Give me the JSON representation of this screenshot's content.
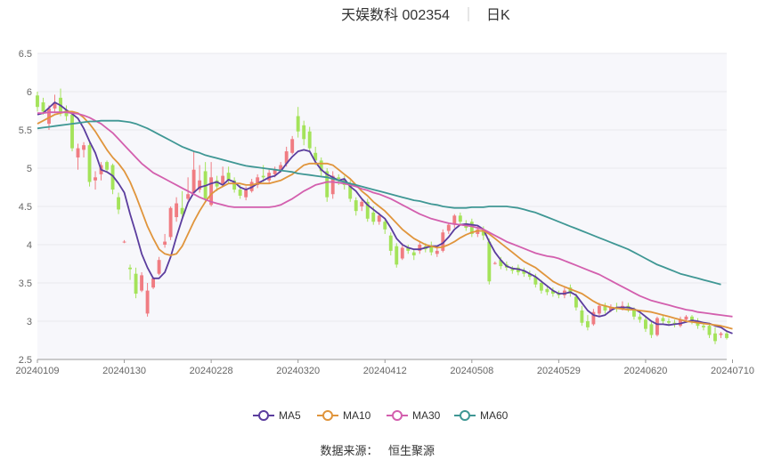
{
  "header": {
    "title": "天娱数科 002354",
    "period": "日K"
  },
  "footer": {
    "source_label": "数据来源：",
    "source_value": "恒生聚源"
  },
  "colors": {
    "up": "#f07c82",
    "down": "#a4e35a",
    "ma5": "#5b3d9e",
    "ma10": "#e0953c",
    "ma30": "#d35fae",
    "ma60": "#3f9794",
    "grid": "#e8e8ee",
    "plot_bg": "#f7f7fb"
  },
  "chart_data": {
    "type": "candlestick",
    "ylim": [
      2.5,
      6.5
    ],
    "y_ticks": [
      "6.5",
      "6",
      "5.5",
      "5",
      "4.5",
      "4",
      "3.5",
      "3",
      "2.5"
    ],
    "x_tick_labels": [
      "20240109",
      "20240130",
      "20240228",
      "20240320",
      "20240412",
      "20240508",
      "20240529",
      "20240620",
      "20240710"
    ],
    "x_tick_index": [
      0,
      15,
      30,
      45,
      60,
      75,
      90,
      105,
      120
    ],
    "candles": [
      [
        5.95,
        5.8,
        6.0,
        5.74
      ],
      [
        5.86,
        5.74,
        5.92,
        5.7
      ],
      [
        5.58,
        5.78,
        5.82,
        5.5
      ],
      [
        5.78,
        5.86,
        5.96,
        5.72
      ],
      [
        5.92,
        5.72,
        6.04,
        5.68
      ],
      [
        5.76,
        5.68,
        5.82,
        5.62
      ],
      [
        5.7,
        5.26,
        5.74,
        5.22
      ],
      [
        5.14,
        5.26,
        5.32,
        4.98
      ],
      [
        5.24,
        5.3,
        5.34,
        5.14
      ],
      [
        5.3,
        4.82,
        5.34,
        4.76
      ],
      [
        4.84,
        4.88,
        4.96,
        4.72
      ],
      [
        4.92,
        5.04,
        5.08,
        4.84
      ],
      [
        5.08,
        4.98,
        5.1,
        4.94
      ],
      [
        5.04,
        4.72,
        5.06,
        4.66
      ],
      [
        4.62,
        4.46,
        4.68,
        4.4
      ],
      [
        4.04,
        4.04,
        4.06,
        4.02
      ],
      [
        3.7,
        3.68,
        3.74,
        3.54
      ],
      [
        3.62,
        3.36,
        3.7,
        3.3
      ],
      [
        3.4,
        3.6,
        3.64,
        3.38
      ],
      [
        3.1,
        3.4,
        3.5,
        3.06
      ],
      [
        3.44,
        3.56,
        3.58,
        3.42
      ],
      [
        3.62,
        3.8,
        3.84,
        3.6
      ],
      [
        4.0,
        4.04,
        4.14,
        3.96
      ],
      [
        4.1,
        4.48,
        4.5,
        4.06
      ],
      [
        4.36,
        4.54,
        4.62,
        4.3
      ],
      [
        4.48,
        4.4,
        4.7,
        4.36
      ],
      [
        4.6,
        4.66,
        4.88,
        4.58
      ],
      [
        4.68,
        4.98,
        5.22,
        4.66
      ],
      [
        4.72,
        4.84,
        5.04,
        4.68
      ],
      [
        4.96,
        4.6,
        5.08,
        4.56
      ],
      [
        4.52,
        4.88,
        5.08,
        4.5
      ],
      [
        4.84,
        4.76,
        4.9,
        4.7
      ],
      [
        4.8,
        4.9,
        5.02,
        4.78
      ],
      [
        4.94,
        4.84,
        5.02,
        4.8
      ],
      [
        4.84,
        4.72,
        4.88,
        4.68
      ],
      [
        4.72,
        4.64,
        4.78,
        4.6
      ],
      [
        4.62,
        4.72,
        4.76,
        4.58
      ],
      [
        4.7,
        4.82,
        4.86,
        4.68
      ],
      [
        4.78,
        4.88,
        4.92,
        4.74
      ],
      [
        4.9,
        4.88,
        5.04,
        4.82
      ],
      [
        4.84,
        4.94,
        4.98,
        4.8
      ],
      [
        4.92,
        4.98,
        5.02,
        4.88
      ],
      [
        4.98,
        5.04,
        5.08,
        4.94
      ],
      [
        5.06,
        5.22,
        5.28,
        5.02
      ],
      [
        5.2,
        5.38,
        5.42,
        5.18
      ],
      [
        5.68,
        5.48,
        5.8,
        5.4
      ],
      [
        5.56,
        5.38,
        5.62,
        5.3
      ],
      [
        5.48,
        5.26,
        5.54,
        5.2
      ],
      [
        5.2,
        5.1,
        5.28,
        5.04
      ],
      [
        5.1,
        4.96,
        5.14,
        4.9
      ],
      [
        4.96,
        4.62,
        5.0,
        4.56
      ],
      [
        4.66,
        4.9,
        4.96,
        4.6
      ],
      [
        4.88,
        4.86,
        4.92,
        4.78
      ],
      [
        4.84,
        4.78,
        4.9,
        4.72
      ],
      [
        4.8,
        4.6,
        4.84,
        4.56
      ],
      [
        4.58,
        4.44,
        4.62,
        4.38
      ],
      [
        4.5,
        4.56,
        4.6,
        4.44
      ],
      [
        4.56,
        4.34,
        4.6,
        4.3
      ],
      [
        4.42,
        4.3,
        4.5,
        4.26
      ],
      [
        4.3,
        4.38,
        4.42,
        4.26
      ],
      [
        4.3,
        4.2,
        4.34,
        4.14
      ],
      [
        4.12,
        3.92,
        4.16,
        3.86
      ],
      [
        3.98,
        3.74,
        4.02,
        3.7
      ],
      [
        3.82,
        3.96,
        4.02,
        3.8
      ],
      [
        3.96,
        3.92,
        4.0,
        3.88
      ],
      [
        3.9,
        3.86,
        3.94,
        3.8
      ],
      [
        3.92,
        4.0,
        4.04,
        3.88
      ],
      [
        3.98,
        3.94,
        4.02,
        3.9
      ],
      [
        3.98,
        3.9,
        4.04,
        3.86
      ],
      [
        3.88,
        3.92,
        3.96,
        3.84
      ],
      [
        3.92,
        4.16,
        4.2,
        3.9
      ],
      [
        4.18,
        4.26,
        4.28,
        4.14
      ],
      [
        4.26,
        4.38,
        4.4,
        4.22
      ],
      [
        4.38,
        4.3,
        4.42,
        4.26
      ],
      [
        4.28,
        4.22,
        4.32,
        4.18
      ],
      [
        4.3,
        4.14,
        4.34,
        4.1
      ],
      [
        4.14,
        4.2,
        4.24,
        4.1
      ],
      [
        4.2,
        4.12,
        4.24,
        4.06
      ],
      [
        4.04,
        3.52,
        4.08,
        3.48
      ],
      [
        3.76,
        3.76,
        3.78,
        3.74
      ],
      [
        3.8,
        3.72,
        3.84,
        3.68
      ],
      [
        3.74,
        3.7,
        3.78,
        3.66
      ],
      [
        3.68,
        3.66,
        3.72,
        3.62
      ],
      [
        3.7,
        3.64,
        3.74,
        3.6
      ],
      [
        3.66,
        3.62,
        3.7,
        3.58
      ],
      [
        3.62,
        3.58,
        3.66,
        3.54
      ],
      [
        3.58,
        3.48,
        3.62,
        3.44
      ],
      [
        3.5,
        3.4,
        3.54,
        3.36
      ],
      [
        3.42,
        3.38,
        3.46,
        3.34
      ],
      [
        3.4,
        3.36,
        3.44,
        3.32
      ],
      [
        3.36,
        3.34,
        3.4,
        3.3
      ],
      [
        3.34,
        3.4,
        3.44,
        3.3
      ],
      [
        3.44,
        3.36,
        3.48,
        3.32
      ],
      [
        3.32,
        3.18,
        3.36,
        3.14
      ],
      [
        3.14,
        2.98,
        3.2,
        2.94
      ],
      [
        3.0,
        2.92,
        3.08,
        2.88
      ],
      [
        2.96,
        3.12,
        3.16,
        2.94
      ],
      [
        3.1,
        3.2,
        3.24,
        3.06
      ],
      [
        3.2,
        3.14,
        3.24,
        3.1
      ],
      [
        3.14,
        3.18,
        3.22,
        3.12
      ],
      [
        3.18,
        3.16,
        3.24,
        3.12
      ],
      [
        3.16,
        3.2,
        3.26,
        3.14
      ],
      [
        3.2,
        3.16,
        3.24,
        3.12
      ],
      [
        3.14,
        3.06,
        3.18,
        3.02
      ],
      [
        3.06,
        3.02,
        3.1,
        2.98
      ],
      [
        3.02,
        2.9,
        3.06,
        2.86
      ],
      [
        2.96,
        2.82,
        3.0,
        2.78
      ],
      [
        2.82,
        3.04,
        3.06,
        2.8
      ],
      [
        3.04,
        3.0,
        3.08,
        2.96
      ],
      [
        3.0,
        2.98,
        3.04,
        2.94
      ],
      [
        2.98,
        2.96,
        3.02,
        2.92
      ],
      [
        2.94,
        3.02,
        3.06,
        2.92
      ],
      [
        3.02,
        3.06,
        3.08,
        2.98
      ],
      [
        3.06,
        3.0,
        3.08,
        2.96
      ],
      [
        3.0,
        2.94,
        3.04,
        2.9
      ],
      [
        2.94,
        2.92,
        2.98,
        2.88
      ],
      [
        2.94,
        2.82,
        2.98,
        2.78
      ],
      [
        2.84,
        2.74,
        2.92,
        2.7
      ],
      [
        2.82,
        2.84,
        2.86,
        2.78
      ],
      [
        2.84,
        2.78,
        2.88,
        2.76
      ]
    ],
    "series": [
      {
        "name": "MA5",
        "color": "#5b3d9e",
        "values": [
          5.7,
          5.72,
          5.79,
          5.86,
          5.82,
          5.76,
          5.71,
          5.65,
          5.52,
          5.35,
          5.2,
          4.98,
          4.95,
          4.9,
          4.8,
          4.68,
          4.4,
          4.15,
          3.88,
          3.7,
          3.56,
          3.56,
          3.64,
          3.84,
          4.1,
          4.34,
          4.55,
          4.68,
          4.75,
          4.77,
          4.8,
          4.82,
          4.78,
          4.85,
          4.82,
          4.75,
          4.72,
          4.75,
          4.8,
          4.84,
          4.88,
          4.9,
          4.96,
          5.06,
          5.15,
          5.22,
          5.24,
          5.22,
          5.08,
          4.98,
          4.92,
          4.88,
          4.84,
          4.86,
          4.76,
          4.7,
          4.6,
          4.52,
          4.46,
          4.4,
          4.34,
          4.22,
          4.08,
          4.0,
          3.96,
          3.94,
          3.94,
          3.96,
          3.98,
          3.98,
          4.02,
          4.1,
          4.2,
          4.26,
          4.27,
          4.26,
          4.25,
          4.2,
          4.04,
          3.9,
          3.8,
          3.72,
          3.69,
          3.68,
          3.66,
          3.62,
          3.58,
          3.52,
          3.46,
          3.4,
          3.36,
          3.36,
          3.38,
          3.34,
          3.24,
          3.14,
          3.08,
          3.06,
          3.08,
          3.14,
          3.18,
          3.18,
          3.18,
          3.16,
          3.12,
          3.06,
          3.0,
          2.96,
          2.96,
          2.95,
          2.96,
          2.97,
          2.99,
          3.01,
          3.0,
          2.98,
          2.97,
          2.94,
          2.92,
          2.87,
          2.84
        ]
      },
      {
        "name": "MA10",
        "color": "#e0953c",
        "values": [
          5.58,
          5.62,
          5.66,
          5.7,
          5.72,
          5.74,
          5.74,
          5.72,
          5.66,
          5.58,
          5.48,
          5.36,
          5.24,
          5.14,
          5.06,
          4.96,
          4.82,
          4.64,
          4.44,
          4.24,
          4.08,
          3.94,
          3.88,
          3.86,
          3.88,
          3.98,
          4.14,
          4.3,
          4.44,
          4.56,
          4.66,
          4.72,
          4.76,
          4.8,
          4.8,
          4.8,
          4.78,
          4.78,
          4.8,
          4.8,
          4.8,
          4.82,
          4.84,
          4.88,
          4.92,
          4.98,
          5.04,
          5.06,
          5.06,
          5.06,
          5.06,
          5.04,
          4.98,
          4.92,
          4.86,
          4.78,
          4.7,
          4.64,
          4.56,
          4.5,
          4.44,
          4.36,
          4.28,
          4.2,
          4.14,
          4.08,
          4.04,
          4.0,
          3.98,
          3.96,
          3.97,
          4.0,
          4.04,
          4.09,
          4.13,
          4.16,
          4.18,
          4.18,
          4.14,
          4.08,
          4.02,
          3.96,
          3.9,
          3.84,
          3.78,
          3.74,
          3.7,
          3.64,
          3.58,
          3.52,
          3.48,
          3.45,
          3.42,
          3.39,
          3.36,
          3.31,
          3.26,
          3.22,
          3.2,
          3.18,
          3.17,
          3.16,
          3.15,
          3.15,
          3.14,
          3.13,
          3.12,
          3.1,
          3.08,
          3.06,
          3.04,
          3.02,
          3.0,
          2.99,
          2.98,
          2.97,
          2.96,
          2.95,
          2.94,
          2.92,
          2.9
        ]
      },
      {
        "name": "MA30",
        "color": "#d35fae",
        "values": [
          5.72,
          5.72,
          5.73,
          5.73,
          5.73,
          5.73,
          5.72,
          5.71,
          5.69,
          5.66,
          5.62,
          5.58,
          5.52,
          5.46,
          5.38,
          5.3,
          5.22,
          5.14,
          5.06,
          5.0,
          4.94,
          4.9,
          4.86,
          4.82,
          4.78,
          4.74,
          4.7,
          4.66,
          4.62,
          4.59,
          4.56,
          4.54,
          4.52,
          4.5,
          4.49,
          4.49,
          4.49,
          4.49,
          4.49,
          4.49,
          4.49,
          4.5,
          4.52,
          4.56,
          4.6,
          4.65,
          4.7,
          4.74,
          4.78,
          4.8,
          4.82,
          4.82,
          4.81,
          4.8,
          4.78,
          4.76,
          4.73,
          4.71,
          4.68,
          4.66,
          4.63,
          4.6,
          4.56,
          4.52,
          4.48,
          4.44,
          4.4,
          4.37,
          4.34,
          4.32,
          4.3,
          4.28,
          4.27,
          4.26,
          4.25,
          4.24,
          4.22,
          4.2,
          4.16,
          4.12,
          4.08,
          4.04,
          4.01,
          3.98,
          3.95,
          3.92,
          3.89,
          3.87,
          3.85,
          3.84,
          3.82,
          3.79,
          3.76,
          3.73,
          3.7,
          3.67,
          3.64,
          3.61,
          3.57,
          3.53,
          3.49,
          3.45,
          3.41,
          3.37,
          3.33,
          3.3,
          3.27,
          3.25,
          3.23,
          3.21,
          3.19,
          3.17,
          3.15,
          3.14,
          3.12,
          3.11,
          3.1,
          3.09,
          3.08,
          3.07,
          3.06
        ]
      },
      {
        "name": "MA60",
        "color": "#3f9794",
        "values": [
          5.52,
          5.53,
          5.54,
          5.55,
          5.56,
          5.57,
          5.58,
          5.59,
          5.6,
          5.61,
          5.61,
          5.62,
          5.62,
          5.62,
          5.62,
          5.61,
          5.6,
          5.58,
          5.55,
          5.52,
          5.48,
          5.44,
          5.4,
          5.36,
          5.32,
          5.28,
          5.25,
          5.22,
          5.2,
          5.17,
          5.15,
          5.13,
          5.11,
          5.09,
          5.07,
          5.05,
          5.03,
          5.02,
          5.01,
          5.0,
          4.99,
          4.98,
          4.97,
          4.96,
          4.95,
          4.93,
          4.92,
          4.91,
          4.9,
          4.89,
          4.88,
          4.86,
          4.84,
          4.82,
          4.8,
          4.78,
          4.76,
          4.74,
          4.72,
          4.7,
          4.68,
          4.66,
          4.64,
          4.62,
          4.6,
          4.58,
          4.57,
          4.55,
          4.53,
          4.52,
          4.5,
          4.49,
          4.48,
          4.48,
          4.48,
          4.49,
          4.49,
          4.49,
          4.5,
          4.5,
          4.5,
          4.5,
          4.49,
          4.48,
          4.46,
          4.44,
          4.42,
          4.39,
          4.36,
          4.33,
          4.3,
          4.27,
          4.24,
          4.21,
          4.18,
          4.15,
          4.12,
          4.09,
          4.06,
          4.03,
          4.0,
          3.97,
          3.94,
          3.9,
          3.86,
          3.82,
          3.78,
          3.74,
          3.71,
          3.68,
          3.65,
          3.62,
          3.6,
          3.58,
          3.56,
          3.54,
          3.52,
          3.5,
          3.48
        ]
      }
    ],
    "legend": [
      "MA5",
      "MA10",
      "MA30",
      "MA60"
    ],
    "legend_position": "bottom-center",
    "grid": true
  }
}
